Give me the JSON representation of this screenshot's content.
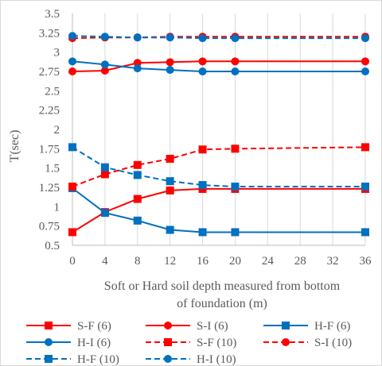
{
  "chart_data": {
    "type": "line",
    "title": "",
    "xlabel": "Soft or Hard soil depth  measured from bottom of foundation (m)",
    "ylabel": "T(sec)",
    "x_ticks": [
      "0",
      "4",
      "8",
      "12",
      "16",
      "20",
      "24",
      "28",
      "32",
      "36"
    ],
    "x_tick_values": [
      0,
      4,
      8,
      12,
      16,
      20,
      24,
      28,
      32,
      36
    ],
    "x": [
      0,
      4,
      8,
      12,
      16,
      20,
      36
    ],
    "y_ticks": [
      "0.5",
      "0.75",
      "1",
      "1.25",
      "1.5",
      "1.75",
      "2",
      "2.25",
      "2.5",
      "2.75",
      "3",
      "3.25",
      "3.5"
    ],
    "ylim": [
      0.5,
      3.5
    ],
    "xlim": [
      0,
      36
    ],
    "grid": "vertical",
    "legend_position": "bottom",
    "series": [
      {
        "name": "S-F (6)",
        "color": "#ff0000",
        "dash": "solid",
        "marker": "square",
        "values": [
          0.67,
          0.93,
          1.1,
          1.21,
          1.23,
          1.23,
          1.23
        ]
      },
      {
        "name": "S-I (6)",
        "color": "#ff0000",
        "dash": "solid",
        "marker": "circle",
        "values": [
          2.75,
          2.76,
          2.86,
          2.87,
          2.88,
          2.88,
          2.88
        ]
      },
      {
        "name": "H-F (6)",
        "color": "#0070c0",
        "dash": "solid",
        "marker": "square",
        "values": [
          1.24,
          0.92,
          0.82,
          0.7,
          0.67,
          0.67,
          0.67
        ]
      },
      {
        "name": "H-I (6)",
        "color": "#0070c0",
        "dash": "solid",
        "marker": "circle",
        "values": [
          2.88,
          2.84,
          2.79,
          2.77,
          2.75,
          2.75,
          2.75
        ]
      },
      {
        "name": "S-F (10)",
        "color": "#ff0000",
        "dash": "dashed",
        "marker": "square",
        "values": [
          1.26,
          1.42,
          1.54,
          1.62,
          1.74,
          1.75,
          1.77
        ]
      },
      {
        "name": "S-I (10)",
        "color": "#ff0000",
        "dash": "dashed",
        "marker": "circle",
        "values": [
          3.18,
          3.19,
          3.19,
          3.2,
          3.2,
          3.2,
          3.2
        ]
      },
      {
        "name": "H-F (10)",
        "color": "#0070c0",
        "dash": "dashed",
        "marker": "square",
        "values": [
          1.77,
          1.51,
          1.41,
          1.33,
          1.28,
          1.26,
          1.26
        ]
      },
      {
        "name": "H-I (10)",
        "color": "#0070c0",
        "dash": "dashed",
        "marker": "circle",
        "values": [
          3.21,
          3.2,
          3.19,
          3.19,
          3.18,
          3.18,
          3.18
        ]
      }
    ]
  }
}
